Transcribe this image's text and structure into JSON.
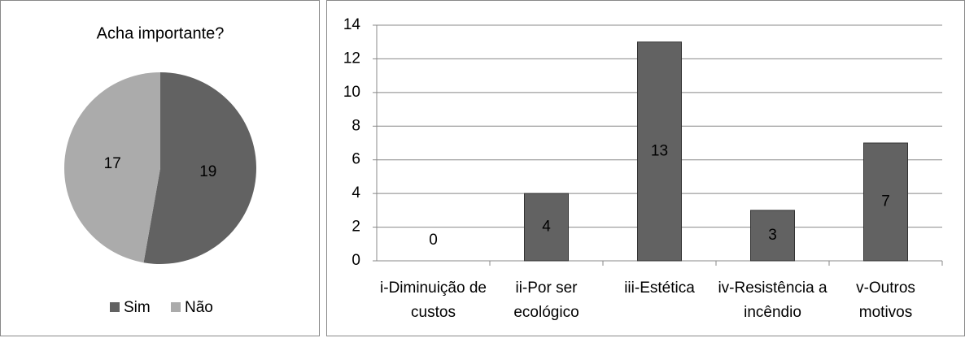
{
  "chart_data": [
    {
      "type": "pie",
      "title": "Acha importante?",
      "categories": [
        "Sim",
        "Não"
      ],
      "values": [
        19,
        17
      ],
      "colors": [
        "#626262",
        "#ababab"
      ],
      "legend": "bottom"
    },
    {
      "type": "bar",
      "categories": [
        "i-Diminuição de custos",
        "ii-Por ser ecológico",
        "iii-Estética",
        "iv-Resistência a incêndio",
        "v-Outros motivos"
      ],
      "values": [
        0,
        4,
        13,
        3,
        7
      ],
      "color": "#626262",
      "ylim": [
        0,
        14
      ],
      "yticks": [
        0,
        2,
        4,
        6,
        8,
        10,
        12,
        14
      ],
      "grid": true
    }
  ]
}
